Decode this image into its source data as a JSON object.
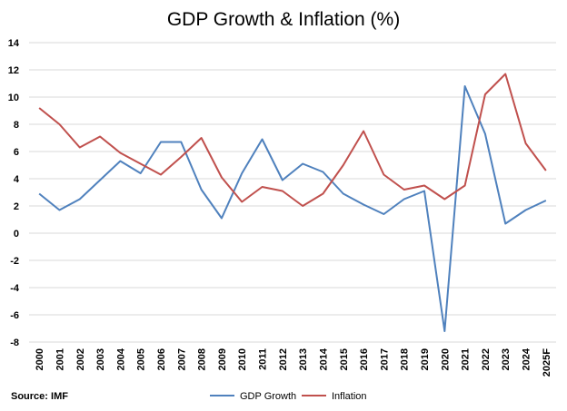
{
  "chart_data": {
    "type": "line",
    "title": "GDP Growth & Inflation (%)",
    "xlabel": "",
    "ylabel": "",
    "ylim": [
      -8,
      14
    ],
    "yticks": [
      14,
      12,
      10,
      8,
      6,
      4,
      2,
      0,
      -2,
      -4,
      -6,
      -8
    ],
    "grid": true,
    "legend_position": "bottom",
    "categories": [
      "2000",
      "2001",
      "2002",
      "2003",
      "2004",
      "2005",
      "2006",
      "2007",
      "2008",
      "2009",
      "2010",
      "2011",
      "2012",
      "2013",
      "2014",
      "2015",
      "2016",
      "2017",
      "2018",
      "2019",
      "2020",
      "2021",
      "2022",
      "2023",
      "2024",
      "2025F"
    ],
    "series": [
      {
        "name": "GDP Growth",
        "color": "#4f81bd",
        "values": [
          2.9,
          1.7,
          2.5,
          3.9,
          5.3,
          4.4,
          6.7,
          6.7,
          3.2,
          1.1,
          4.4,
          6.9,
          3.9,
          5.1,
          4.5,
          2.9,
          2.1,
          1.4,
          2.5,
          3.1,
          -7.2,
          10.8,
          7.3,
          0.7,
          1.7,
          2.4
        ]
      },
      {
        "name": "Inflation",
        "color": "#c0504d",
        "values": [
          9.2,
          8.0,
          6.3,
          7.1,
          5.9,
          5.1,
          4.3,
          5.6,
          7.0,
          4.1,
          2.3,
          3.4,
          3.1,
          2.0,
          2.9,
          5.0,
          7.5,
          4.3,
          3.2,
          3.5,
          2.5,
          3.5,
          10.2,
          11.7,
          6.6,
          4.6
        ]
      }
    ],
    "source": "Source: IMF"
  }
}
